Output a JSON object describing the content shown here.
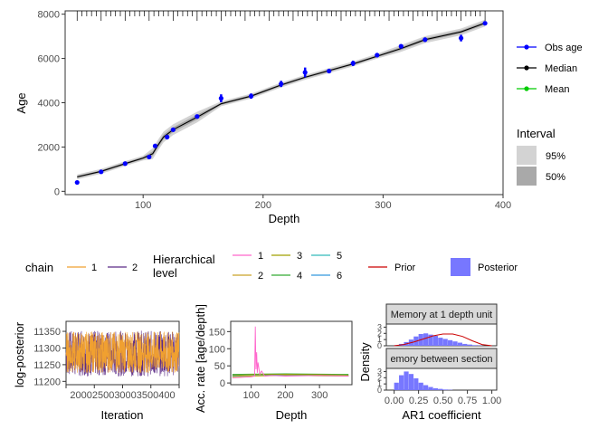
{
  "chart_data": [
    {
      "type": "line",
      "xlabel": "Depth",
      "ylabel": "Age",
      "xlim": [
        35,
        400
      ],
      "ylim": [
        -150,
        8150
      ],
      "xticks": [
        100,
        200,
        300,
        400
      ],
      "yticks": [
        0,
        2000,
        4000,
        6000,
        8000
      ],
      "series": [
        {
          "name": "Obs age",
          "color": "#0000ff",
          "kind": "points_with_errorbars",
          "x": [
            45,
            65,
            85,
            105,
            110,
            120,
            125,
            145,
            165,
            190,
            215,
            235,
            255,
            275,
            295,
            315,
            335,
            365,
            385
          ],
          "y": [
            400,
            880,
            1250,
            1550,
            2050,
            2450,
            2780,
            3380,
            4200,
            4300,
            4850,
            5370,
            5430,
            5780,
            6150,
            6550,
            6850,
            6920,
            7590
          ],
          "err": [
            30,
            40,
            40,
            60,
            70,
            100,
            80,
            70,
            180,
            120,
            140,
            220,
            80,
            120,
            100,
            80,
            100,
            150,
            60
          ]
        },
        {
          "name": "Median",
          "color": "#000000",
          "kind": "line",
          "x": [
            45,
            65,
            85,
            100,
            108,
            112,
            117,
            125,
            145,
            165,
            190,
            215,
            235,
            255,
            275,
            295,
            315,
            335,
            365,
            385
          ],
          "y": [
            650,
            900,
            1250,
            1500,
            1700,
            2050,
            2450,
            2780,
            3350,
            3950,
            4300,
            4800,
            5150,
            5450,
            5750,
            6100,
            6450,
            6850,
            7200,
            7600
          ]
        },
        {
          "name": "Mean",
          "color": "#00cc00",
          "kind": "line"
        }
      ],
      "interval_legend": {
        "title": "Interval",
        "items": [
          "95%",
          "50%"
        ]
      },
      "rug": "depth markers along top"
    },
    {
      "type": "line",
      "xlabel": "Iteration",
      "ylabel": "log-posterior",
      "xlim": [
        2000,
        4000
      ],
      "ylim": [
        11190,
        11380
      ],
      "xticks": [
        2000,
        2500,
        3000,
        3500,
        4000
      ],
      "xtick_label_text": "2000250030003500400",
      "yticks": [
        11200,
        11250,
        11300,
        11350
      ],
      "series": [
        {
          "name": "1",
          "color": "#f0a030",
          "note": "trace ~11230-11350"
        },
        {
          "name": "2",
          "color": "#5b2a86",
          "note": "trace ~11220-11350"
        }
      ]
    },
    {
      "type": "line",
      "xlabel": "Depth",
      "ylabel": "Acc. rate [age/depth]",
      "xlim": [
        40,
        395
      ],
      "ylim": [
        -5,
        180
      ],
      "xticks": [
        100,
        200,
        300
      ],
      "yticks": [
        0,
        50,
        100,
        150
      ],
      "series": [
        {
          "name": "1",
          "color": "#ff66cc",
          "x": [
            45,
            100,
            110,
            112,
            114,
            116,
            118,
            120,
            125,
            130,
            140,
            160,
            200,
            250,
            300,
            385
          ],
          "y": [
            15,
            18,
            20,
            165,
            40,
            90,
            30,
            60,
            25,
            35,
            20,
            22,
            20,
            21,
            22,
            20
          ]
        },
        {
          "name": "2",
          "color": "#c9a227",
          "x": [
            45,
            100,
            200,
            300,
            385
          ],
          "y": [
            18,
            20,
            22,
            21,
            20
          ]
        },
        {
          "name": "3",
          "color": "#a0a000",
          "x": [
            45,
            100,
            200,
            300,
            385
          ],
          "y": [
            22,
            24,
            25,
            24,
            23
          ]
        },
        {
          "name": "4",
          "color": "#33aa33",
          "x": [
            45,
            100,
            200,
            300,
            385
          ],
          "y": [
            25,
            26,
            27,
            26,
            25
          ]
        },
        {
          "name": "5",
          "color": "#33bbbb",
          "x": [
            45,
            100,
            200,
            300,
            385
          ],
          "y": [
            20,
            21,
            22,
            21,
            20
          ]
        },
        {
          "name": "6",
          "color": "#3399dd",
          "x": [
            45,
            100,
            200,
            300,
            385
          ],
          "y": [
            23,
            24,
            23,
            24,
            23
          ]
        }
      ]
    },
    {
      "type": "bar",
      "ylabel": "Density",
      "xlabel": "AR1 coefficient",
      "xlim": [
        -0.08,
        1.05
      ],
      "xticks": [
        0.0,
        0.25,
        0.5,
        0.75,
        1.0
      ],
      "xtick_labels": [
        "0.00",
        "0.25",
        "0.50",
        "0.75",
        "1.00"
      ],
      "panels": [
        {
          "strip": "Memory at 1 depth unit",
          "yticks": [
            0,
            1,
            2,
            3
          ],
          "ylim": [
            0,
            3.5
          ],
          "bins": [
            0.0,
            0.05,
            0.1,
            0.15,
            0.2,
            0.25,
            0.3,
            0.35,
            0.4,
            0.45,
            0.5,
            0.55,
            0.6,
            0.65,
            0.7,
            0.75,
            0.8,
            0.85,
            0.9,
            0.95
          ],
          "values": [
            0.1,
            0.3,
            0.6,
            1.0,
            1.5,
            1.9,
            2.0,
            1.8,
            1.6,
            1.3,
            1.1,
            0.9,
            0.7,
            0.5,
            0.3,
            0.2,
            0.1,
            0.05,
            0.0,
            0.0
          ],
          "prior_x": [
            0.0,
            0.1,
            0.2,
            0.3,
            0.4,
            0.5,
            0.6,
            0.7,
            0.8,
            0.9,
            1.0
          ],
          "prior_y": [
            0.0,
            0.2,
            0.6,
            1.1,
            1.6,
            1.9,
            1.9,
            1.5,
            0.8,
            0.2,
            0.0
          ]
        },
        {
          "strip": "emory between section",
          "yticks": [
            0,
            1,
            2,
            3
          ],
          "ylim": [
            0,
            3.5
          ],
          "bins": [
            0.0,
            0.05,
            0.1,
            0.15,
            0.2,
            0.25,
            0.3,
            0.35,
            0.4,
            0.45,
            0.5,
            0.55,
            0.6,
            0.65,
            0.7,
            0.75,
            0.8,
            0.85,
            0.9,
            0.95
          ],
          "values": [
            1.2,
            2.4,
            3.0,
            2.6,
            1.9,
            1.2,
            0.8,
            0.5,
            0.3,
            0.2,
            0.1,
            0.05,
            0.0,
            0.0,
            0.0,
            0.0,
            0.0,
            0.0,
            0.0,
            0.0
          ]
        }
      ]
    }
  ],
  "legend_chain": {
    "title": "chain",
    "items": [
      {
        "name": "1",
        "color": "#f0a030"
      },
      {
        "name": "2",
        "color": "#5b2a86"
      }
    ]
  },
  "legend_hier": {
    "title_line1": "Hierarchical",
    "title_line2": "level",
    "items": [
      {
        "name": "1",
        "color": "#ff66cc"
      },
      {
        "name": "2",
        "color": "#c9a227"
      },
      {
        "name": "3",
        "color": "#a0a000"
      },
      {
        "name": "4",
        "color": "#33aa33"
      },
      {
        "name": "5",
        "color": "#33bbbb"
      },
      {
        "name": "6",
        "color": "#3399dd"
      }
    ]
  },
  "legend_prior": {
    "name": "Prior",
    "color": "#cc0000"
  },
  "legend_posterior": {
    "name": "Posterior",
    "color": "#7777ff"
  }
}
